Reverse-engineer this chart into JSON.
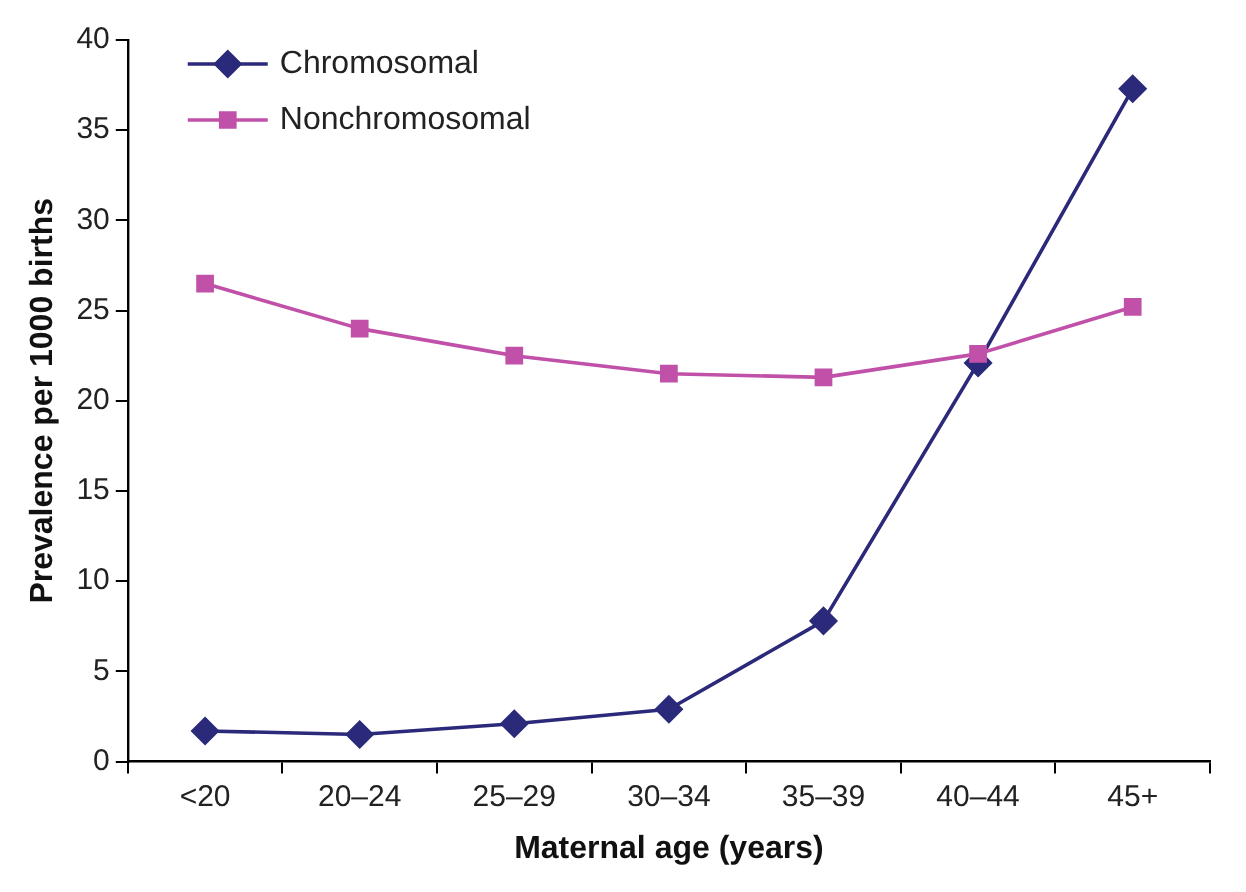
{
  "chart_data": {
    "type": "line",
    "xlabel": "Maternal age (years)",
    "ylabel": "Prevalence per 1000 births",
    "categories": [
      "<20",
      "20–24",
      "25–29",
      "30–34",
      "35–39",
      "40–44",
      "45+"
    ],
    "series": [
      {
        "name": "Chromosomal",
        "color": "#2b2a7a",
        "marker": "diamond",
        "values": [
          1.7,
          1.5,
          2.1,
          2.9,
          7.8,
          22.1,
          37.3
        ]
      },
      {
        "name": "Nonchromosomal",
        "color": "#c050a8",
        "marker": "square",
        "values": [
          26.5,
          24.0,
          22.5,
          21.5,
          21.3,
          22.6,
          25.2
        ]
      }
    ],
    "ylim": [
      0,
      40
    ],
    "yticks": [
      0,
      5,
      10,
      15,
      20,
      25,
      30,
      35,
      40
    ],
    "grid": false,
    "legend": "top left",
    "line_style": "solid"
  }
}
